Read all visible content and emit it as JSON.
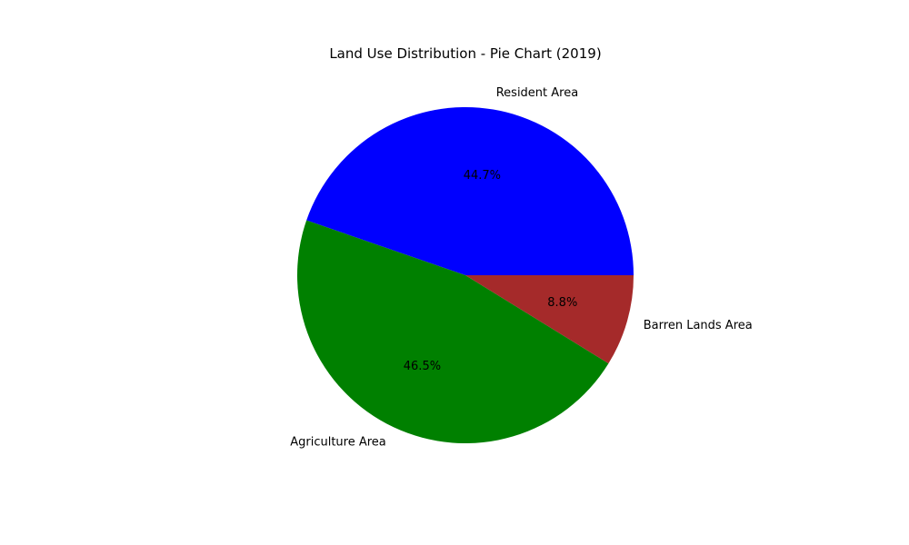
{
  "chart_data": {
    "type": "pie",
    "title": "Land Use Distribution - Pie Chart (2019)",
    "categories": [
      "Resident Area",
      "Agriculture Area",
      "Barren Lands Area"
    ],
    "values": [
      44.7,
      46.5,
      8.8
    ],
    "percent_labels": [
      "44.7%",
      "46.5%",
      "8.8%"
    ],
    "colors": [
      "#0000ff",
      "#008000",
      "#a52a2a"
    ],
    "start_angle_deg": 0,
    "direction": "counterclockwise"
  }
}
